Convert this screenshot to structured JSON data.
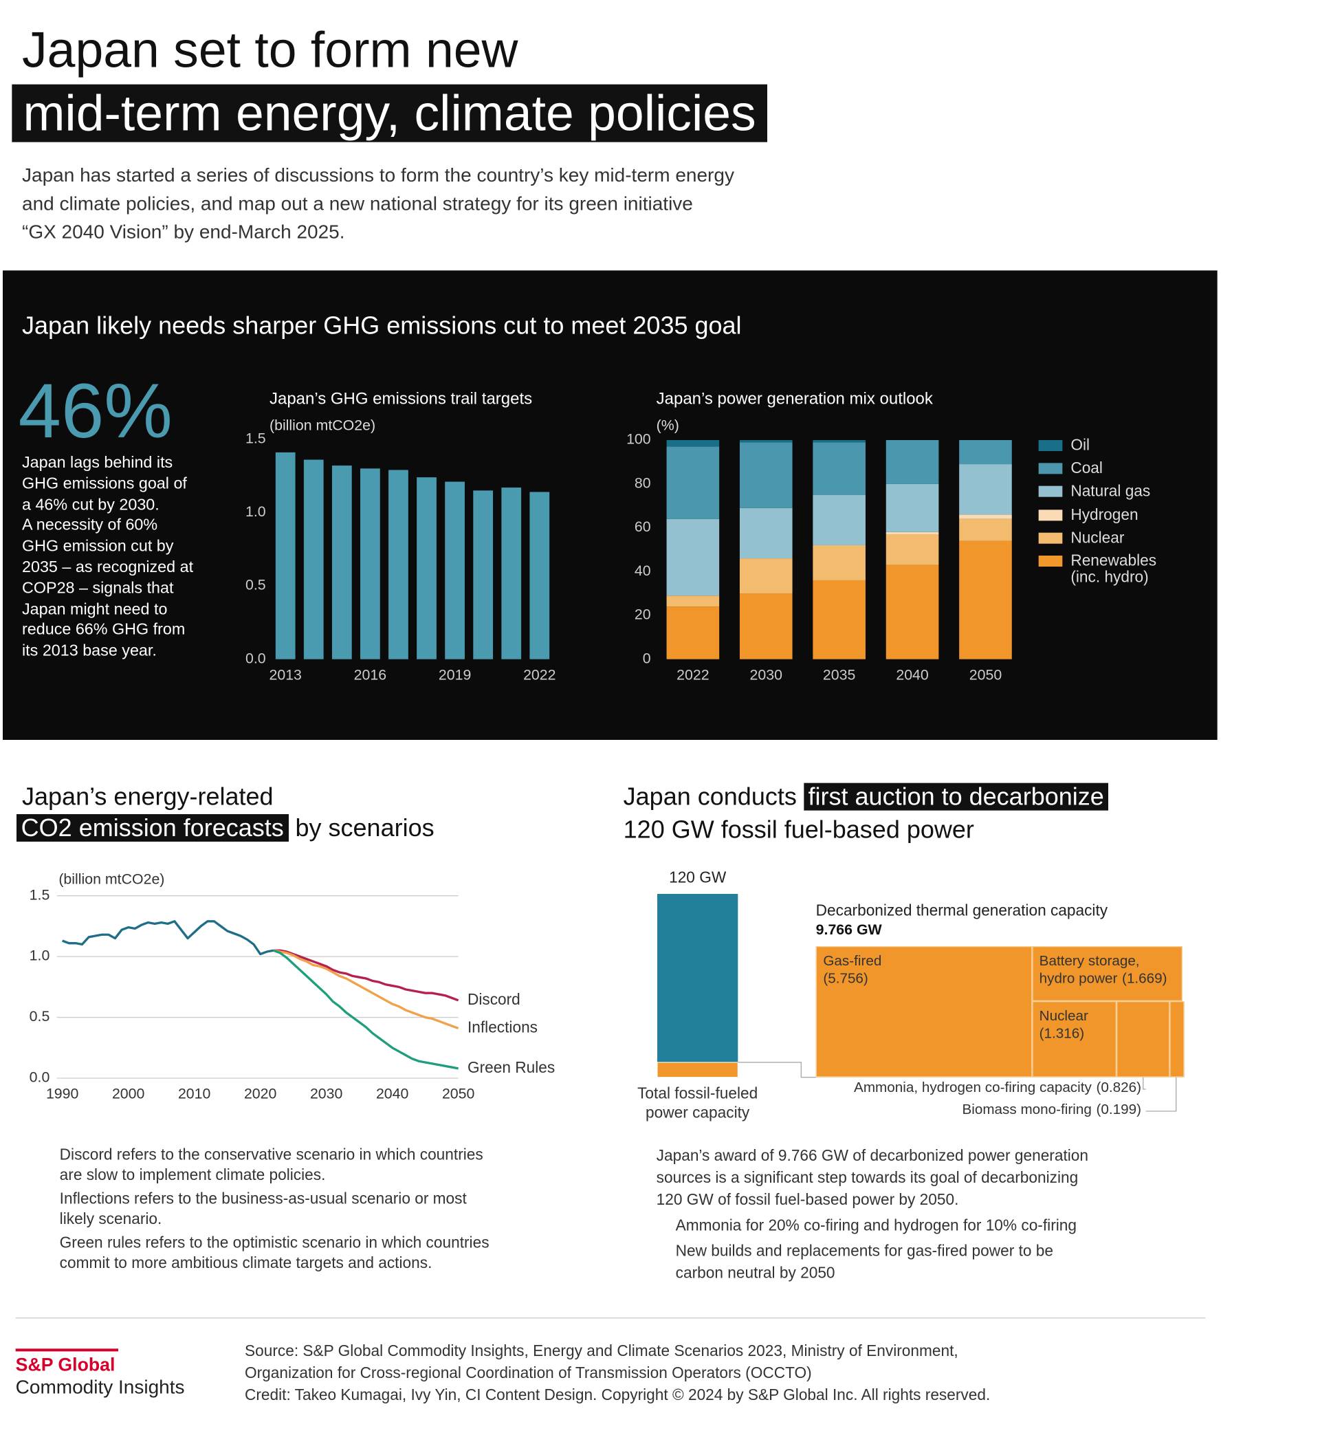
{
  "header": {
    "title_lines": [
      "Japan set to form new",
      "mid-term energy, climate policies"
    ],
    "intro_lines": [
      "Japan has started a series of discussions to form the country’s key mid-term energy",
      "and climate policies, and map out a new national strategy for its green initiative",
      "“GX 2040 Vision” by end-March 2025."
    ]
  },
  "panel": {
    "title": "Japan likely needs sharper GHG emissions cut to meet 2035 goal",
    "stat": "46%",
    "stat_lines": [
      "Japan lags behind its",
      "GHG emissions goal of",
      "a 46% cut by 2030.",
      "A necessity of 60%",
      "GHG emission cut by",
      "2035 – as recognized at",
      "COP28 – signals that",
      "Japan might need to",
      "reduce 66% GHG from",
      "its 2013 base year."
    ]
  },
  "chart_data": [
    {
      "type": "bar",
      "title": "Japan’s GHG emissions trail targets",
      "y_label": "(billion mtCO2e)",
      "categories": [
        "2013",
        null,
        null,
        "2016",
        null,
        null,
        "2019",
        null,
        null,
        "2022"
      ],
      "values": [
        1.41,
        1.36,
        1.32,
        1.3,
        1.29,
        1.24,
        1.21,
        1.15,
        1.17,
        1.14
      ],
      "color": "#4a9bb0",
      "ylim": [
        0,
        1.5
      ],
      "yticks": [
        {
          "value": 0,
          "label": "0.0"
        },
        0.5,
        {
          "value": 1,
          "label": "1.0"
        },
        1.5
      ],
      "grid": false
    },
    {
      "type": "stacked_bar",
      "title": "Japan’s power generation mix outlook",
      "y_label": "(%)",
      "categories": [
        "2022",
        "2030",
        "2035",
        "2040",
        "2050"
      ],
      "series": [
        {
          "name": "Oil",
          "color": "#1a6f88",
          "values": [
            3,
            1,
            1,
            0,
            0
          ]
        },
        {
          "name": "Coal",
          "color": "#4a97ae",
          "values": [
            33,
            30,
            24,
            20,
            11
          ]
        },
        {
          "name": "Natural gas",
          "color": "#94c1cf",
          "values": [
            35,
            23,
            23,
            22,
            23
          ]
        },
        {
          "name": "Hydrogen",
          "color": "#f9dcb5",
          "values": [
            0,
            0,
            0,
            1,
            2
          ]
        },
        {
          "name": "Nuclear",
          "color": "#f3bb6e",
          "values": [
            5,
            16,
            16,
            14,
            10
          ]
        },
        {
          "name": "Renewables (inc. hydro)",
          "color": "#f0962a",
          "values": [
            24,
            30,
            36,
            43,
            54
          ]
        }
      ],
      "ylim": [
        0,
        100
      ],
      "yticks": [
        0,
        20,
        40,
        60,
        80,
        100
      ],
      "grid": false,
      "legend": "right"
    },
    {
      "type": "line",
      "title": [
        "Japan’s energy-related",
        "CO2 emission forecasts",
        "by scenarios"
      ],
      "y_label": "(billion mtCO2e)",
      "x": [
        1990,
        1991,
        1992,
        1993,
        1994,
        1995,
        1996,
        1997,
        1998,
        1999,
        2000,
        2001,
        2002,
        2003,
        2004,
        2005,
        2006,
        2007,
        2008,
        2009,
        2010,
        2011,
        2012,
        2013,
        2014,
        2015,
        2016,
        2017,
        2018,
        2019,
        2020,
        2021,
        2022,
        2023,
        2024,
        2025,
        2026,
        2027,
        2028,
        2029,
        2030,
        2031,
        2032,
        2033,
        2034,
        2035,
        2036,
        2037,
        2038,
        2039,
        2040,
        2041,
        2042,
        2043,
        2044,
        2045,
        2046,
        2047,
        2048,
        2049,
        2050
      ],
      "series": [
        {
          "color": "#1d6e86",
          "values": [
            1.13,
            1.11,
            1.11,
            1.1,
            1.16,
            1.17,
            1.18,
            1.18,
            1.15,
            1.22,
            1.24,
            1.23,
            1.26,
            1.28,
            1.27,
            1.28,
            1.27,
            1.29,
            1.22,
            1.15,
            1.2,
            1.25,
            1.29,
            1.29,
            1.25,
            1.21,
            1.19,
            1.17,
            1.14,
            1.1,
            1.02,
            1.04,
            1.05,
            null,
            null,
            null,
            null,
            null,
            null,
            null,
            null,
            null,
            null,
            null,
            null,
            null,
            null,
            null,
            null,
            null,
            null,
            null,
            null,
            null,
            null,
            null,
            null,
            null,
            null,
            null,
            null
          ]
        },
        {
          "name": "Discord",
          "color": "#b5204f",
          "values": [
            null,
            null,
            null,
            null,
            null,
            null,
            null,
            null,
            null,
            null,
            null,
            null,
            null,
            null,
            null,
            null,
            null,
            null,
            null,
            null,
            null,
            null,
            null,
            null,
            null,
            null,
            null,
            null,
            null,
            null,
            null,
            null,
            1.05,
            1.05,
            1.04,
            1.02,
            1.0,
            0.98,
            0.96,
            0.94,
            0.92,
            0.89,
            0.87,
            0.86,
            0.84,
            0.83,
            0.82,
            0.8,
            0.79,
            0.77,
            0.76,
            0.75,
            0.73,
            0.72,
            0.71,
            0.7,
            0.7,
            0.69,
            0.68,
            0.66,
            0.64
          ]
        },
        {
          "name": "Inflections",
          "color": "#f0a24a",
          "values": [
            null,
            null,
            null,
            null,
            null,
            null,
            null,
            null,
            null,
            null,
            null,
            null,
            null,
            null,
            null,
            null,
            null,
            null,
            null,
            null,
            null,
            null,
            null,
            null,
            null,
            null,
            null,
            null,
            null,
            null,
            null,
            null,
            1.05,
            1.04,
            1.03,
            1.01,
            0.98,
            0.96,
            0.93,
            0.92,
            0.9,
            0.87,
            0.84,
            0.82,
            0.79,
            0.76,
            0.73,
            0.7,
            0.67,
            0.64,
            0.61,
            0.59,
            0.56,
            0.54,
            0.52,
            0.5,
            0.49,
            0.47,
            0.45,
            0.43,
            0.41
          ]
        },
        {
          "name": "Green Rules",
          "color": "#1d9e7c",
          "values": [
            null,
            null,
            null,
            null,
            null,
            null,
            null,
            null,
            null,
            null,
            null,
            null,
            null,
            null,
            null,
            null,
            null,
            null,
            null,
            null,
            null,
            null,
            null,
            null,
            null,
            null,
            null,
            null,
            null,
            null,
            null,
            null,
            1.05,
            1.03,
            0.99,
            0.94,
            0.89,
            0.84,
            0.79,
            0.74,
            0.69,
            0.63,
            0.59,
            0.54,
            0.5,
            0.46,
            0.42,
            0.37,
            0.33,
            0.29,
            0.25,
            0.22,
            0.19,
            0.16,
            0.14,
            0.13,
            0.12,
            0.11,
            0.1,
            0.09,
            0.08
          ]
        }
      ],
      "xlim": [
        1990,
        2050
      ],
      "xticks": [
        1990,
        2000,
        2010,
        2020,
        2030,
        2040,
        2050
      ],
      "ylim": [
        0,
        1.5
      ],
      "yticks": [
        {
          "value": 0,
          "label": "0.0"
        },
        0.5,
        {
          "value": 1,
          "label": "1.0"
        },
        1.5
      ],
      "grid": true
    },
    {
      "type": "treemap",
      "title": [
        "Japan conducts",
        "first auction to decarbonize",
        "120 GW fossil fuel-based power"
      ],
      "total": 120,
      "total_label": "120 GW",
      "total_caption": "Total fossil-fueled power capacity",
      "total_color": "#23809b",
      "decarbonized": 9.766,
      "decarbonized_title": "Decarbonized thermal generation capacity",
      "decarbonized_label": "9.766 GW",
      "categories": [
        "Gas-fired",
        "Battery storage, hydro power",
        "Nuclear",
        "Ammonia, hydrogen co-firing capacity",
        "Biomass mono-firing"
      ],
      "values": [
        5.756,
        1.669,
        1.316,
        0.826,
        0.199
      ],
      "value_labels": [
        "(5.756)",
        "(1.669)",
        "(1.316)",
        "(0.826)",
        "(0.199)"
      ],
      "color": "#f0962a"
    }
  ],
  "scenario_notes": [
    [
      "Discord refers to the conservative scenario in which countries",
      "are slow to implement climate policies."
    ],
    [
      "Inflections refers to the business-as-usual scenario or most",
      "likely scenario."
    ],
    [
      "Green rules refers to the optimistic scenario in which countries",
      "commit to more ambitious climate targets and actions."
    ]
  ],
  "auction_text": {
    "summary_lines": [
      "Japan’s award of 9.766 GW of decarbonized power generation",
      "sources is a significant step towards its goal of decarbonizing",
      "120 GW of fossil fuel-based power by 2050."
    ],
    "bullets": [
      [
        "Ammonia for 20% co-firing and hydrogen for 10% co-firing"
      ],
      [
        "New builds and replacements for gas-fired power to be",
        "carbon neutral by 2050"
      ]
    ]
  },
  "footer": {
    "logo": [
      "S&P Global",
      "Commodity Insights"
    ],
    "source_lines": [
      "Source: S&P Global Commodity Insights, Energy and Climate Scenarios 2023, Ministry of Environment,",
      "Organization for Cross-regional Coordination of Transmission Operators (OCCTO)",
      "Credit: Takeo Kumagai, Ivy Yin, CI Content Design.  Copyright © 2024 by S&P Global Inc.  All rights reserved."
    ]
  }
}
